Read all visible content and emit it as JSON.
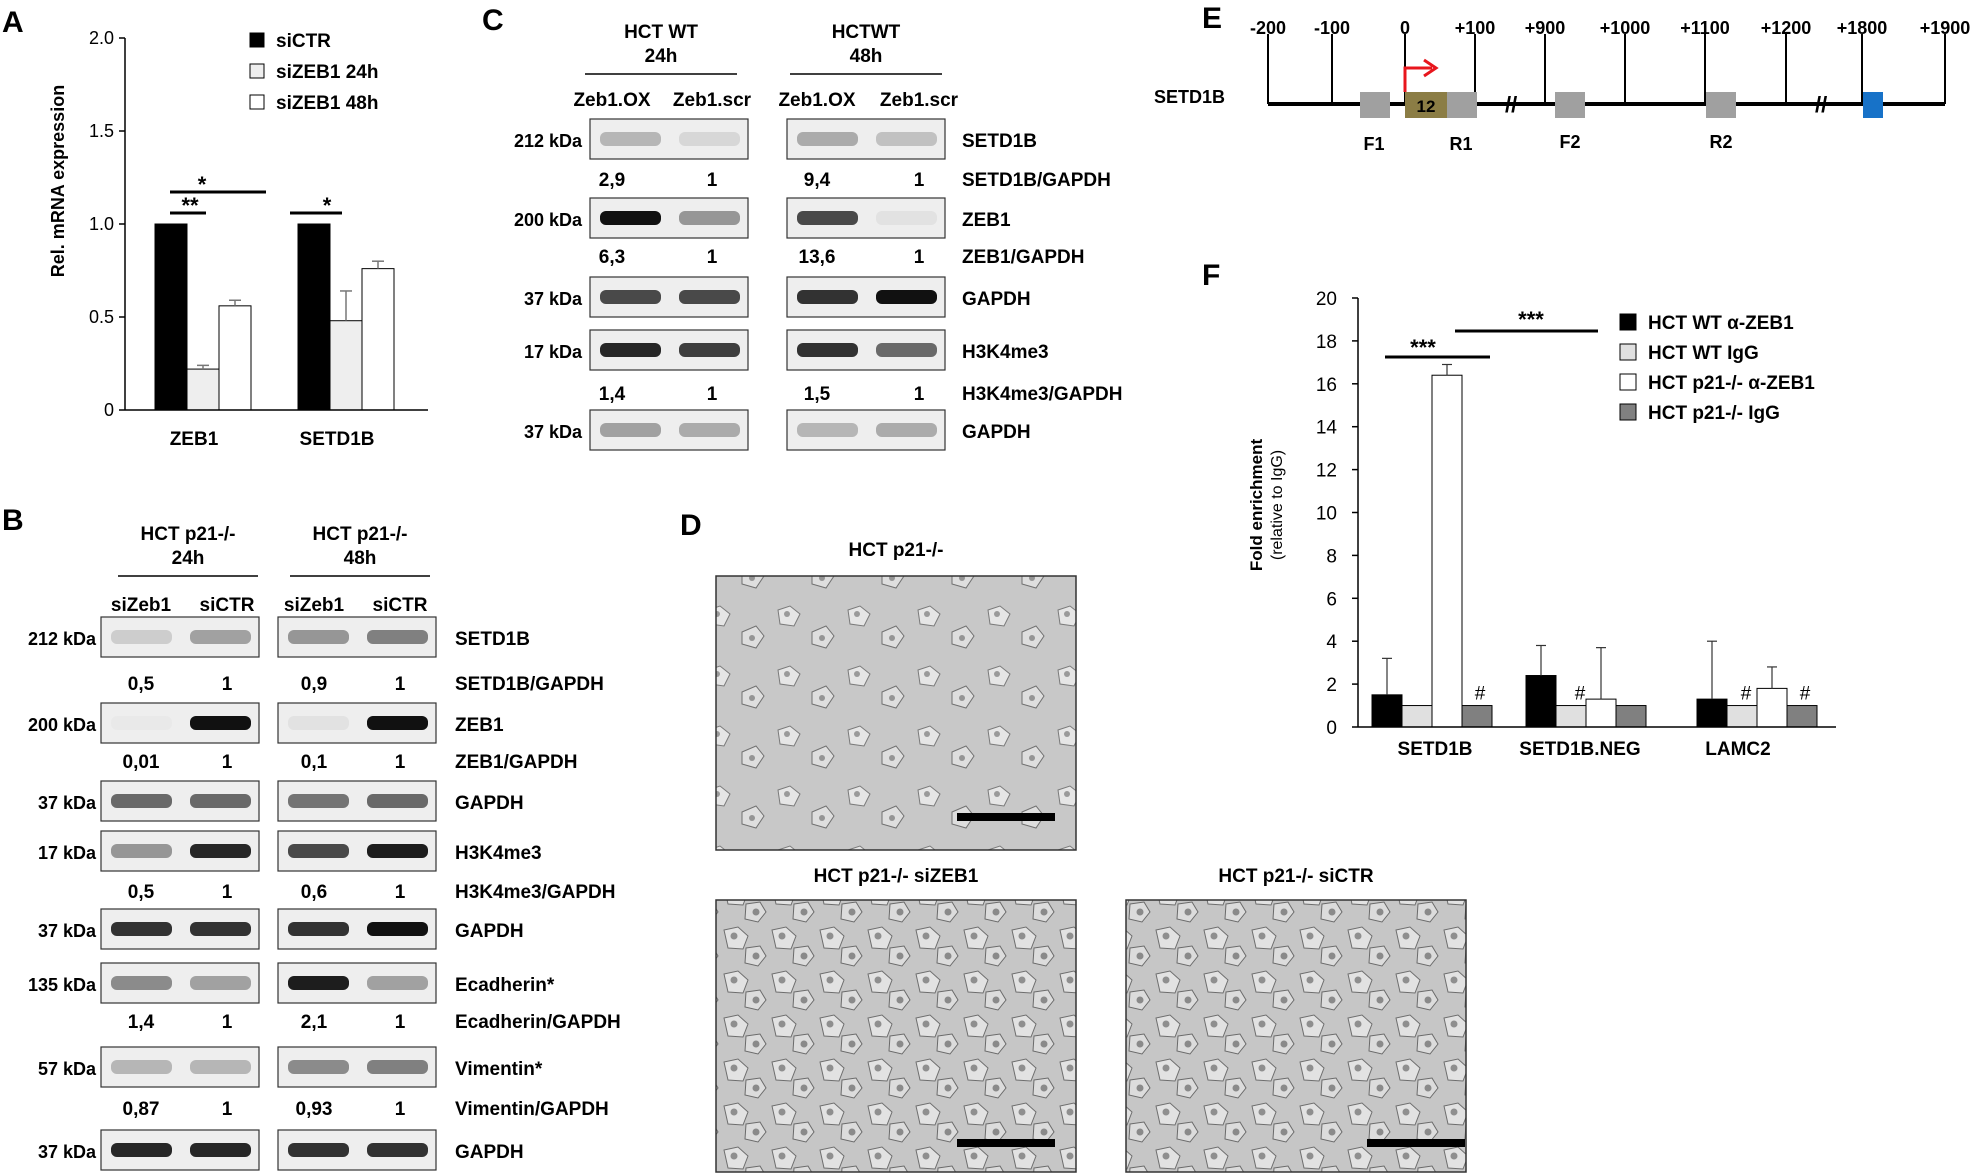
{
  "panelA": {
    "letter": "A",
    "ylabel": "Rel. mRNA expression",
    "ticks": [
      "2.0",
      "1.5",
      "1.0",
      "0.5",
      "0"
    ],
    "legend": [
      "siCTR",
      "siZEB1 24h",
      "siZEB1 48h"
    ],
    "groups": [
      "ZEB1",
      "SETD1B"
    ],
    "sig": [
      "*",
      "**",
      "*"
    ]
  },
  "panelB": {
    "letter": "B",
    "cond1": [
      "HCT p21-/-",
      "24h"
    ],
    "cond2": [
      "HCT p21-/-",
      "48h"
    ],
    "lanes": [
      "siZeb1",
      "siCTR",
      "siZeb1",
      "siCTR"
    ],
    "rows": [
      {
        "kda": "212 kDa",
        "name": "SETD1B"
      },
      {
        "ratio": "SETD1B/GAPDH",
        "vals": [
          "0,5",
          "1",
          "0,9",
          "1"
        ]
      },
      {
        "kda": "200 kDa",
        "name": "ZEB1"
      },
      {
        "ratio": "ZEB1/GAPDH",
        "vals": [
          "0,01",
          "1",
          "0,1",
          "1"
        ]
      },
      {
        "kda": "37 kDa",
        "name": "GAPDH"
      },
      {
        "kda": "17 kDa",
        "name": "H3K4me3"
      },
      {
        "ratio": "H3K4me3/GAPDH",
        "vals": [
          "0,5",
          "1",
          "0,6",
          "1"
        ]
      },
      {
        "kda": "37 kDa",
        "name": "GAPDH"
      },
      {
        "kda": "135 kDa",
        "name": "Ecadherin*"
      },
      {
        "ratio": "Ecadherin/GAPDH",
        "vals": [
          "1,4",
          "1",
          "2,1",
          "1"
        ]
      },
      {
        "kda": "57 kDa",
        "name": "Vimentin*"
      },
      {
        "ratio": "Vimentin/GAPDH",
        "vals": [
          "0,87",
          "1",
          "0,93",
          "1"
        ]
      },
      {
        "kda": "37 kDa",
        "name": "GAPDH"
      }
    ]
  },
  "panelC": {
    "letter": "C",
    "cond1": [
      "HCT WT",
      "24h"
    ],
    "cond2": [
      "HCTWT",
      "48h"
    ],
    "lanes": [
      "Zeb1.OX",
      "Zeb1.scr",
      "Zeb1.OX",
      "Zeb1.scr"
    ],
    "rows": [
      {
        "kda": "212 kDa",
        "name": "SETD1B"
      },
      {
        "ratio": "SETD1B/GAPDH",
        "vals": [
          "2,9",
          "1",
          "9,4",
          "1"
        ]
      },
      {
        "kda": "200 kDa",
        "name": "ZEB1"
      },
      {
        "ratio": "ZEB1/GAPDH",
        "vals": [
          "6,3",
          "1",
          "13,6",
          "1"
        ]
      },
      {
        "kda": "37 kDa",
        "name": "GAPDH"
      },
      {
        "kda": "17 kDa",
        "name": "H3K4me3"
      },
      {
        "ratio": "H3K4me3/GAPDH",
        "vals": [
          "1,4",
          "1",
          "1,5",
          "1"
        ]
      },
      {
        "kda": "37 kDa",
        "name": "GAPDH"
      }
    ]
  },
  "panelD": {
    "letter": "D",
    "titles": [
      "HCT p21-/-",
      "HCT p21-/- siZEB1",
      "HCT p21-/- siCTR"
    ]
  },
  "panelE": {
    "letter": "E",
    "gene": "SETD1B",
    "positions": [
      "-200",
      "-100",
      "0",
      "+100",
      "+900",
      "+1000",
      "+1100",
      "+1200",
      "+1800",
      "+1900"
    ],
    "box_label": "12",
    "primers": [
      "F1",
      "R1",
      "F2",
      "R2"
    ]
  },
  "panelF": {
    "letter": "F",
    "ylabel": [
      "Fold enrichment",
      "(relative to IgG)"
    ],
    "ticks": [
      "20",
      "18",
      "16",
      "14",
      "12",
      "10",
      "8",
      "6",
      "4",
      "2",
      "0"
    ],
    "legend": [
      "HCT WT α-ZEB1",
      "HCT WT IgG",
      "HCT p21-/- α-ZEB1",
      "HCT p21-/- IgG"
    ],
    "groups": [
      "SETD1B",
      "SETD1B.NEG",
      "LAMC2"
    ],
    "sig": [
      "***",
      "***"
    ],
    "hash": "#"
  },
  "chart_data": [
    {
      "type": "bar",
      "title": "",
      "xlabel": "",
      "ylabel": "Rel. mRNA expression",
      "ylim": [
        0,
        2.0
      ],
      "categories": [
        "ZEB1",
        "SETD1B"
      ],
      "series": [
        {
          "name": "siCTR",
          "values": [
            1.0,
            1.0
          ],
          "errors": [
            0,
            0
          ],
          "color": "#000000"
        },
        {
          "name": "siZEB1 24h",
          "values": [
            0.22,
            0.48
          ],
          "errors": [
            0.02,
            0.16
          ],
          "color": "#eeeeee"
        },
        {
          "name": "siZEB1 48h",
          "values": [
            0.56,
            0.76
          ],
          "errors": [
            0.03,
            0.04
          ],
          "color": "#ffffff"
        }
      ],
      "legend": "top-right"
    },
    {
      "type": "bar",
      "title": "",
      "xlabel": "",
      "ylabel": "Fold enrichment (relative to IgG)",
      "ylim": [
        0,
        20
      ],
      "categories": [
        "SETD1B",
        "SETD1B.NEG",
        "LAMC2"
      ],
      "series": [
        {
          "name": "HCT WT α-ZEB1",
          "values": [
            1.5,
            2.4,
            1.3
          ],
          "errors": [
            1.7,
            1.4,
            2.7
          ],
          "color": "#000000"
        },
        {
          "name": "HCT WT IgG",
          "values": [
            1.0,
            1.0,
            1.0
          ],
          "errors": [
            0,
            0,
            0
          ],
          "color": "#e0e0e0"
        },
        {
          "name": "HCT p21-/- α-ZEB1",
          "values": [
            16.4,
            1.3,
            1.8
          ],
          "errors": [
            0.5,
            2.4,
            1.0
          ],
          "color": "#ffffff"
        },
        {
          "name": "HCT p21-/- IgG",
          "values": [
            1.0,
            1.0,
            1.0
          ],
          "errors": [
            0,
            0,
            0
          ],
          "color": "#808080"
        }
      ],
      "legend": "top-right"
    }
  ]
}
